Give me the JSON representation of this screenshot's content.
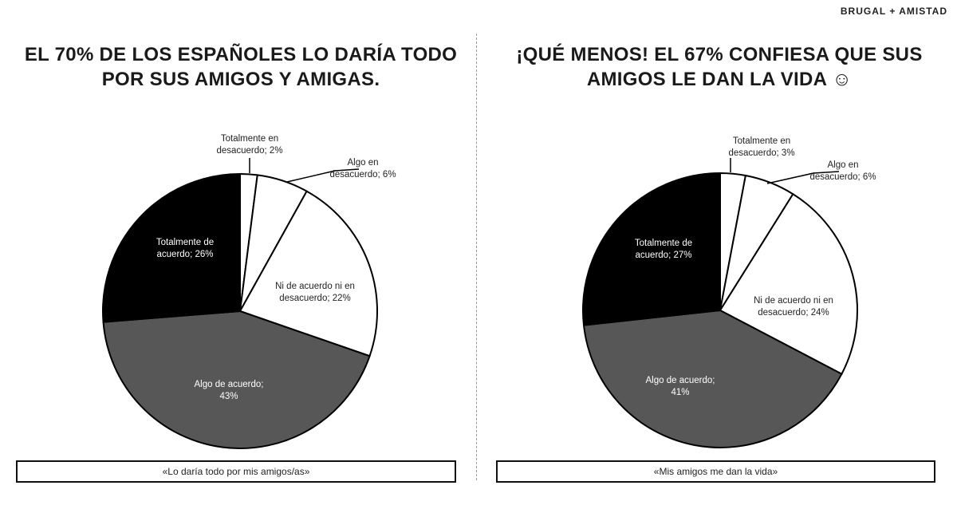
{
  "brand": "BRUGAL + AMISTAD",
  "chart_data": [
    {
      "type": "pie",
      "title": "EL 70% DE LOS ESPAÑOLES LO DARÍA TODO POR SUS AMIGOS Y AMIGAS.",
      "caption": "«Lo daría todo por mis amigos/as»",
      "slices": [
        {
          "label": "Totalmente en desacuerdo; 2%",
          "value": 2,
          "color": "#ffffff"
        },
        {
          "label": "Algo en desacuerdo; 6%",
          "value": 6,
          "color": "#ffffff"
        },
        {
          "label": "Ni de acuerdo ni en desacuerdo; 22%",
          "value": 22,
          "color": "#ffffff"
        },
        {
          "label": "Algo de acuerdo; 43%",
          "value": 43,
          "color": "#575757"
        },
        {
          "label": "Totalmente de acuerdo; 26%",
          "value": 26,
          "color": "#000000"
        }
      ]
    },
    {
      "type": "pie",
      "title": "¡QUÉ MENOS! EL  67% CONFIESA QUE SUS AMIGOS LE DAN LA VIDA ☺",
      "caption": "«Mis amigos me dan la vida»",
      "slices": [
        {
          "label": "Totalmente en desacuerdo; 3%",
          "value": 3,
          "color": "#ffffff"
        },
        {
          "label": "Algo en desacuerdo; 6%",
          "value": 6,
          "color": "#ffffff"
        },
        {
          "label": "Ni de acuerdo ni en desacuerdo; 24%",
          "value": 24,
          "color": "#ffffff"
        },
        {
          "label": "Algo de acuerdo; 41%",
          "value": 41,
          "color": "#575757"
        },
        {
          "label": "Totalmente de acuerdo; 27%",
          "value": 27,
          "color": "#000000"
        }
      ]
    }
  ]
}
